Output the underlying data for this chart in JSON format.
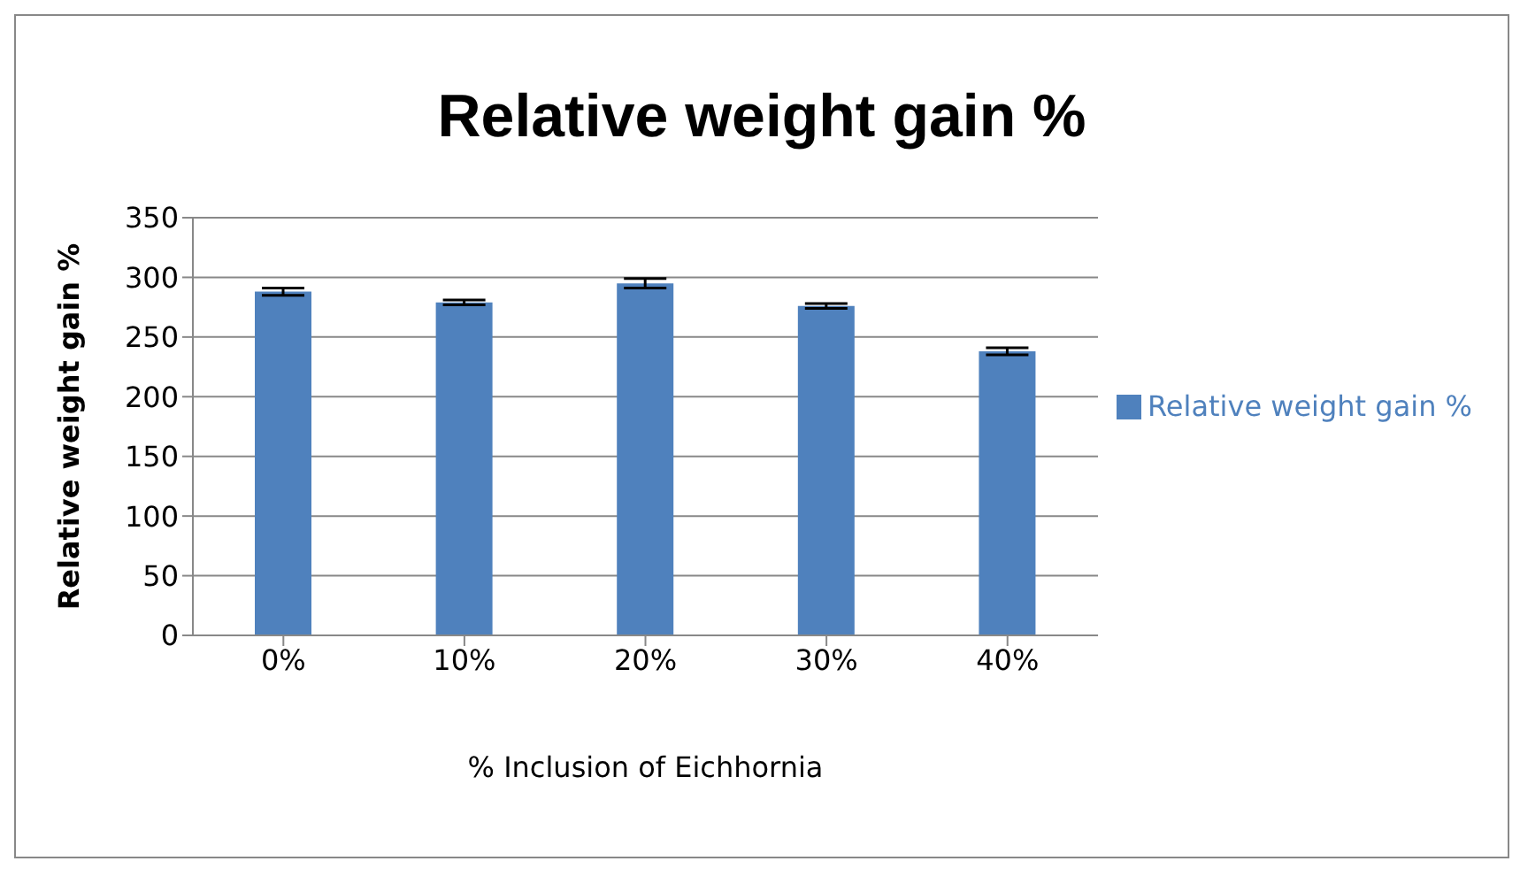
{
  "chart_data": {
    "type": "bar",
    "title": "Relative weight gain %",
    "xlabel": "% Inclusion of Eichhornia",
    "ylabel": "Relative weight gain %",
    "categories": [
      "0%",
      "10%",
      "20%",
      "30%",
      "40%"
    ],
    "series": [
      {
        "name": "Relative weight gain %",
        "color": "#4f81bd",
        "values": [
          288,
          279,
          295,
          276,
          238
        ],
        "errors": [
          3,
          2,
          4,
          2,
          3
        ]
      }
    ],
    "ylim": [
      0,
      350
    ],
    "yticks": [
      0,
      50,
      100,
      150,
      200,
      250,
      300,
      350
    ],
    "grid": "y",
    "legend": "right"
  }
}
